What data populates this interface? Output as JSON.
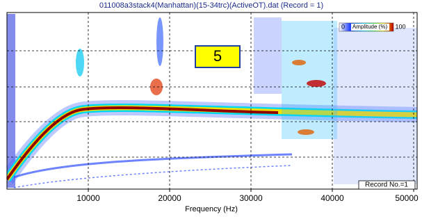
{
  "chart_data": {
    "type": "heatmap",
    "title": "011008a3stack4(Manhattan)(15-34trc)(ActiveOT).dat (Record = 1)",
    "xlabel": "Frequency (Hz)",
    "xlim": [
      0,
      50000
    ],
    "xticks": [
      10000,
      20000,
      30000,
      40000,
      50000
    ],
    "grid": true,
    "colorbar": {
      "min_label": "0",
      "label": "Amplitude (%)",
      "max_label": "100"
    },
    "annotation": "5",
    "record_label": "Record No.=1"
  }
}
